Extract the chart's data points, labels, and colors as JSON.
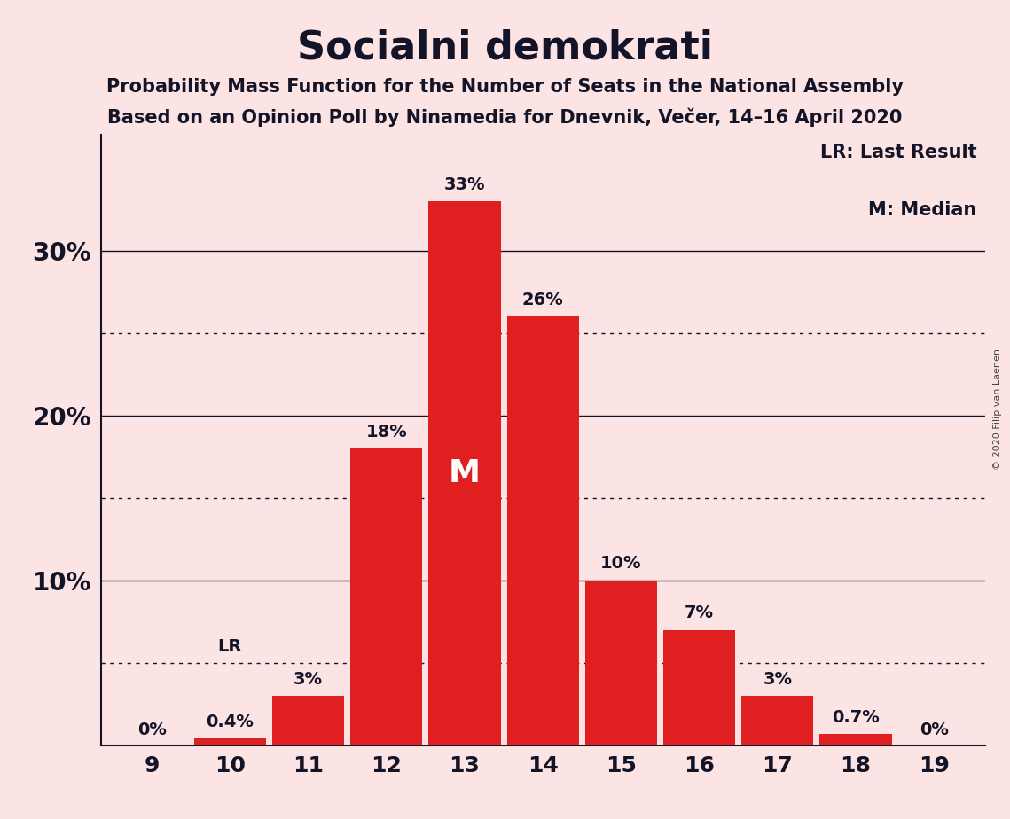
{
  "title": "Socialni demokrati",
  "subtitle1": "Probability Mass Function for the Number of Seats in the National Assembly",
  "subtitle2": "Based on an Opinion Poll by Ninamedia for Dnevnik, Večer, 14–16 April 2020",
  "seats": [
    9,
    10,
    11,
    12,
    13,
    14,
    15,
    16,
    17,
    18,
    19
  ],
  "probabilities": [
    0.0,
    0.4,
    3.0,
    18.0,
    33.0,
    26.0,
    10.0,
    7.0,
    3.0,
    0.7,
    0.0
  ],
  "labels": [
    "0%",
    "0.4%",
    "3%",
    "18%",
    "33%",
    "26%",
    "10%",
    "7%",
    "3%",
    "0.7%",
    "0%"
  ],
  "bar_color": "#e02020",
  "background_color": "#fce4e4",
  "text_color": "#141428",
  "median_seat": 13,
  "median_label": "M",
  "lr_seat": 10,
  "lr_label": "LR",
  "ylim": [
    0,
    37
  ],
  "dotted_lines": [
    5,
    15,
    25
  ],
  "solid_lines": [
    10,
    20,
    30
  ],
  "ytick_display": [
    10,
    20,
    30
  ],
  "legend_text1": "LR: Last Result",
  "legend_text2": "M: Median",
  "copyright": "© 2020 Filip van Laenen"
}
